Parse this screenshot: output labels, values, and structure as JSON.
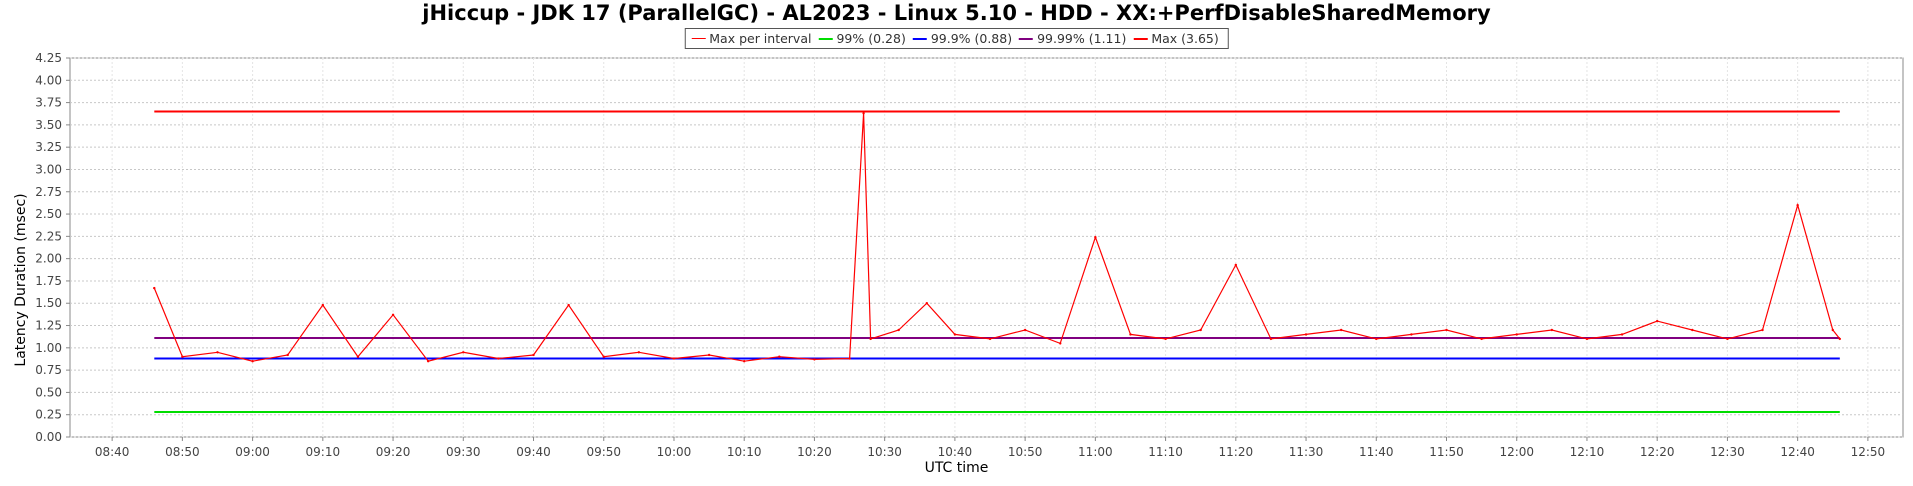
{
  "chart_data": {
    "type": "line",
    "title": "jHiccup - JDK 17 (ParallelGC) - AL2023 - Linux 5.10 - HDD - XX:+PerfDisableSharedMemory",
    "xlabel": "UTC time",
    "ylabel": "Latency Duration (msec)",
    "xlim": [
      "08:34",
      "12:55"
    ],
    "ylim": [
      0,
      4.25
    ],
    "y_ticks": [
      "0.00",
      "0.25",
      "0.50",
      "0.75",
      "1.00",
      "1.25",
      "1.50",
      "1.75",
      "2.00",
      "2.25",
      "2.50",
      "2.75",
      "3.00",
      "3.25",
      "3.50",
      "3.75",
      "4.00",
      "4.25"
    ],
    "x_ticks": [
      "08:40",
      "08:50",
      "09:00",
      "09:10",
      "09:20",
      "09:30",
      "09:40",
      "09:50",
      "10:00",
      "10:10",
      "10:20",
      "10:30",
      "10:40",
      "10:50",
      "11:00",
      "11:10",
      "11:20",
      "11:30",
      "11:40",
      "11:50",
      "12:00",
      "12:10",
      "12:20",
      "12:30",
      "12:40",
      "12:50"
    ],
    "grid": true,
    "legend_position": "top-center",
    "series": [
      {
        "name": "Max per interval",
        "color": "#ff0000",
        "x": [
          "08:46",
          "08:50",
          "08:55",
          "09:00",
          "09:05",
          "09:10",
          "09:15",
          "09:20",
          "09:25",
          "09:30",
          "09:35",
          "09:40",
          "09:45",
          "09:50",
          "09:55",
          "10:00",
          "10:05",
          "10:10",
          "10:15",
          "10:20",
          "10:25",
          "10:27",
          "10:28",
          "10:32",
          "10:36",
          "10:40",
          "10:45",
          "10:50",
          "10:55",
          "11:00",
          "11:05",
          "11:10",
          "11:15",
          "11:20",
          "11:25",
          "11:30",
          "11:35",
          "11:40",
          "11:45",
          "11:50",
          "11:55",
          "12:00",
          "12:05",
          "12:10",
          "12:15",
          "12:20",
          "12:25",
          "12:30",
          "12:35",
          "12:40",
          "12:45",
          "12:46"
        ],
        "values": [
          1.67,
          0.9,
          0.95,
          0.85,
          0.92,
          1.48,
          0.9,
          1.37,
          0.85,
          0.95,
          0.88,
          0.92,
          1.48,
          0.9,
          0.95,
          0.88,
          0.92,
          0.85,
          0.9,
          0.87,
          0.88,
          3.63,
          1.1,
          1.2,
          1.5,
          1.15,
          1.1,
          1.2,
          1.05,
          2.24,
          1.15,
          1.1,
          1.2,
          1.93,
          1.1,
          1.15,
          1.2,
          1.1,
          1.15,
          1.2,
          1.1,
          1.15,
          1.2,
          1.1,
          1.15,
          1.3,
          1.2,
          1.1,
          1.2,
          2.6,
          1.2,
          1.1
        ]
      },
      {
        "name": "99% (0.28)",
        "color": "#00dd00",
        "x": [
          "08:46",
          "12:46"
        ],
        "values": [
          0.28,
          0.28
        ]
      },
      {
        "name": "99.9% (0.88)",
        "color": "#0000ff",
        "x": [
          "08:46",
          "12:46"
        ],
        "values": [
          0.88,
          0.88
        ]
      },
      {
        "name": "99.99% (1.11)",
        "color": "#800080",
        "x": [
          "08:46",
          "12:46"
        ],
        "values": [
          1.11,
          1.11
        ]
      },
      {
        "name": "Max (3.65)",
        "color": "#ff0000",
        "x": [
          "08:46",
          "12:46"
        ],
        "values": [
          3.65,
          3.65
        ]
      }
    ]
  }
}
